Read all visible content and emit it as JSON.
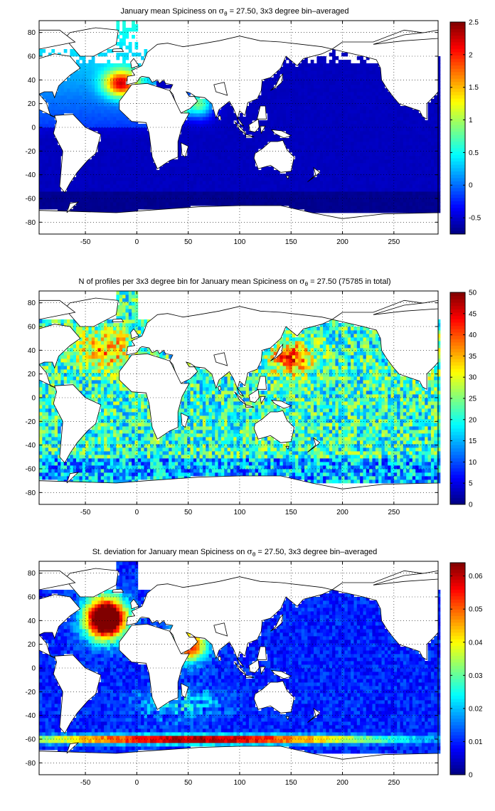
{
  "chart_data": [
    {
      "type": "heatmap",
      "title_prefix": "January mean Spiciness on ",
      "title_sigma": "σ",
      "title_sub": "θ",
      "title_suffix": " = 27.50, 3x3 degree bin–averaged",
      "xticks": [
        "-50",
        "0",
        "50",
        "100",
        "150",
        "200",
        "250"
      ],
      "xtick_values": [
        -50,
        0,
        50,
        100,
        150,
        200,
        250
      ],
      "yticks": [
        "80",
        "60",
        "40",
        "20",
        "0",
        "-20",
        "-40",
        "-60",
        "-80"
      ],
      "ytick_values": [
        80,
        60,
        40,
        20,
        0,
        -20,
        -40,
        -60,
        -80
      ],
      "xlim": [
        -95,
        293
      ],
      "ylim": [
        -90,
        90
      ],
      "grid": true,
      "colormap": "jet",
      "colorbar_ticks": [
        "2.5",
        "2",
        "1.5",
        "1",
        "0.5",
        "0",
        "-0.5"
      ],
      "colorbar_values": [
        2.5,
        2,
        1.5,
        1,
        0.5,
        0,
        -0.5
      ],
      "clim": [
        -0.75,
        2.5
      ]
    },
    {
      "type": "heatmap",
      "title_prefix": "N of profiles per 3x3 degree bin for January mean Spiciness on ",
      "title_sigma": "σ",
      "title_sub": "θ",
      "title_suffix": " = 27.50 (75785 in total)",
      "xticks": [
        "-50",
        "0",
        "50",
        "100",
        "150",
        "200",
        "250"
      ],
      "xtick_values": [
        -50,
        0,
        50,
        100,
        150,
        200,
        250
      ],
      "yticks": [
        "80",
        "60",
        "40",
        "20",
        "0",
        "-20",
        "-40",
        "-60",
        "-80"
      ],
      "ytick_values": [
        80,
        60,
        40,
        20,
        0,
        -20,
        -40,
        -60,
        -80
      ],
      "xlim": [
        -95,
        293
      ],
      "ylim": [
        -90,
        90
      ],
      "grid": true,
      "colormap": "jet",
      "colorbar_ticks": [
        "50",
        "45",
        "40",
        "35",
        "30",
        "25",
        "20",
        "15",
        "10",
        "5",
        "0"
      ],
      "colorbar_values": [
        50,
        45,
        40,
        35,
        30,
        25,
        20,
        15,
        10,
        5,
        0
      ],
      "clim": [
        0,
        50
      ]
    },
    {
      "type": "heatmap",
      "title_prefix": "St. deviation for January mean Spiciness on ",
      "title_sigma": "σ",
      "title_sub": "θ",
      "title_suffix": " = 27.50, 3x3 degree bin–averaged",
      "xticks": [
        "-50",
        "0",
        "50",
        "100",
        "150",
        "200",
        "250"
      ],
      "xtick_values": [
        -50,
        0,
        50,
        100,
        150,
        200,
        250
      ],
      "yticks": [
        "80",
        "60",
        "40",
        "20",
        "0",
        "-20",
        "-40",
        "-60",
        "-80"
      ],
      "ytick_values": [
        80,
        60,
        40,
        20,
        0,
        -20,
        -40,
        -60,
        -80
      ],
      "xlim": [
        -95,
        293
      ],
      "ylim": [
        -90,
        90
      ],
      "grid": true,
      "colormap": "jet",
      "colorbar_ticks": [
        "0.06",
        "0.05",
        "0.04",
        "0.03",
        "0.02",
        "0.01",
        "0"
      ],
      "colorbar_values": [
        0.06,
        0.05,
        0.04,
        0.03,
        0.02,
        0.01,
        0
      ],
      "clim": [
        0,
        0.064
      ]
    }
  ]
}
